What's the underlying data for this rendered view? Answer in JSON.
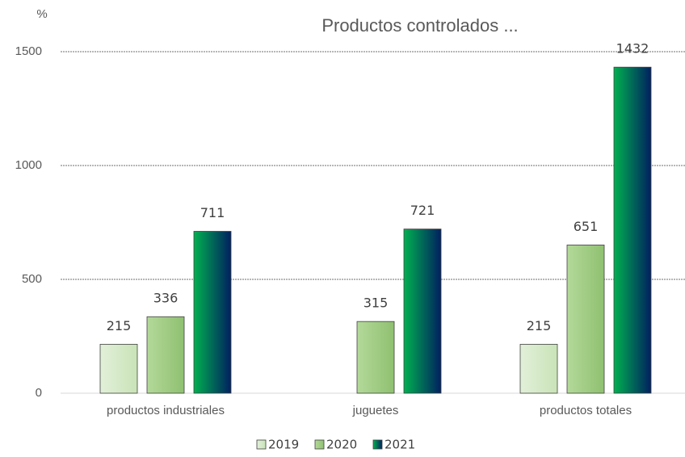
{
  "chart_data": {
    "type": "bar",
    "title": "Productos controlados ...",
    "y_label": "%",
    "categories": [
      "productos industriales",
      "juguetes",
      "productos totales"
    ],
    "series": [
      {
        "name": "2019",
        "color": "#e2f0d9",
        "color_end": "#c9e3b8",
        "values": [
          215,
          null,
          215
        ]
      },
      {
        "name": "2020",
        "color": "#b4d99a",
        "color_end": "#8fc070",
        "values": [
          336,
          315,
          651
        ]
      },
      {
        "name": "2021",
        "color": "#00b050",
        "color_end": "#002060",
        "values": [
          711,
          721,
          1432
        ]
      }
    ],
    "ylim": [
      0,
      1500
    ],
    "yticks": [
      0,
      500,
      1000,
      1500
    ],
    "grid": true,
    "legend": "bottom"
  }
}
